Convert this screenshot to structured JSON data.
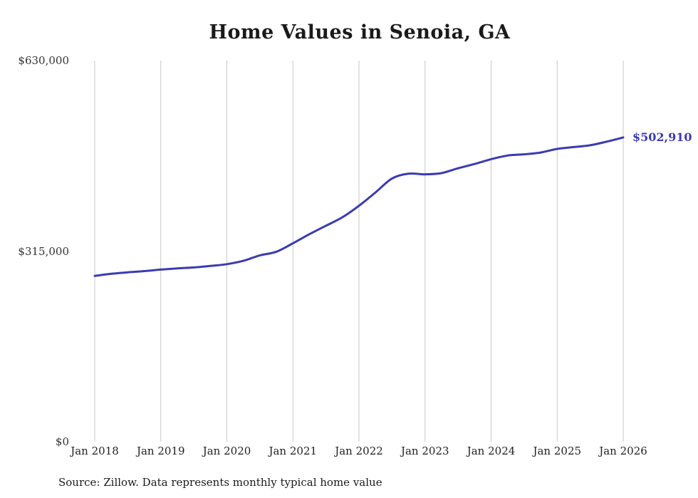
{
  "style": {
    "accent_color": "#3b3bb2",
    "grid_color": "#c9c9c9",
    "tick_text_color": "#333333",
    "background": "#ffffff",
    "line_width": 3
  },
  "chart_data": {
    "type": "line",
    "title": "Home Values in Senoia, GA",
    "source_note": "Source: Zillow. Data represents monthly typical home value",
    "xlabel": "",
    "ylabel": "",
    "xlim": [
      2018.0,
      2026.0
    ],
    "ylim": [
      0,
      630000
    ],
    "grid": "vertical-only",
    "legend": "none",
    "x_ticks": [
      {
        "x": 2018.0,
        "label": "Jan 2018"
      },
      {
        "x": 2019.0,
        "label": "Jan 2019"
      },
      {
        "x": 2020.0,
        "label": "Jan 2020"
      },
      {
        "x": 2021.0,
        "label": "Jan 2021"
      },
      {
        "x": 2022.0,
        "label": "Jan 2022"
      },
      {
        "x": 2023.0,
        "label": "Jan 2023"
      },
      {
        "x": 2024.0,
        "label": "Jan 2024"
      },
      {
        "x": 2025.0,
        "label": "Jan 2025"
      },
      {
        "x": 2026.0,
        "label": "Jan 2026"
      }
    ],
    "y_ticks": [
      {
        "value": 0,
        "label": "$0"
      },
      {
        "value": 315000,
        "label": "$315,000"
      },
      {
        "value": 630000,
        "label": "$630,000"
      }
    ],
    "series": [
      {
        "name": "Typical home value",
        "x": [
          2018.0,
          2018.25,
          2018.5,
          2018.75,
          2019.0,
          2019.25,
          2019.5,
          2019.75,
          2020.0,
          2020.25,
          2020.5,
          2020.75,
          2021.0,
          2021.25,
          2021.5,
          2021.75,
          2022.0,
          2022.25,
          2022.5,
          2022.75,
          2023.0,
          2023.25,
          2023.5,
          2023.75,
          2024.0,
          2024.25,
          2024.5,
          2024.75,
          2025.0,
          2025.25,
          2025.5,
          2025.75,
          2026.0
        ],
        "values": [
          274000,
          277500,
          280000,
          282000,
          284500,
          286500,
          288000,
          290500,
          293500,
          299000,
          308000,
          314000,
          328000,
          343000,
          357000,
          371000,
          390000,
          412000,
          435000,
          443000,
          442000,
          444000,
          452000,
          459000,
          467000,
          473000,
          475000,
          478000,
          484000,
          487000,
          490000,
          496000,
          502910
        ]
      }
    ],
    "annotation": {
      "text": "$502,910",
      "x": 2026.0,
      "value": 502910
    }
  }
}
